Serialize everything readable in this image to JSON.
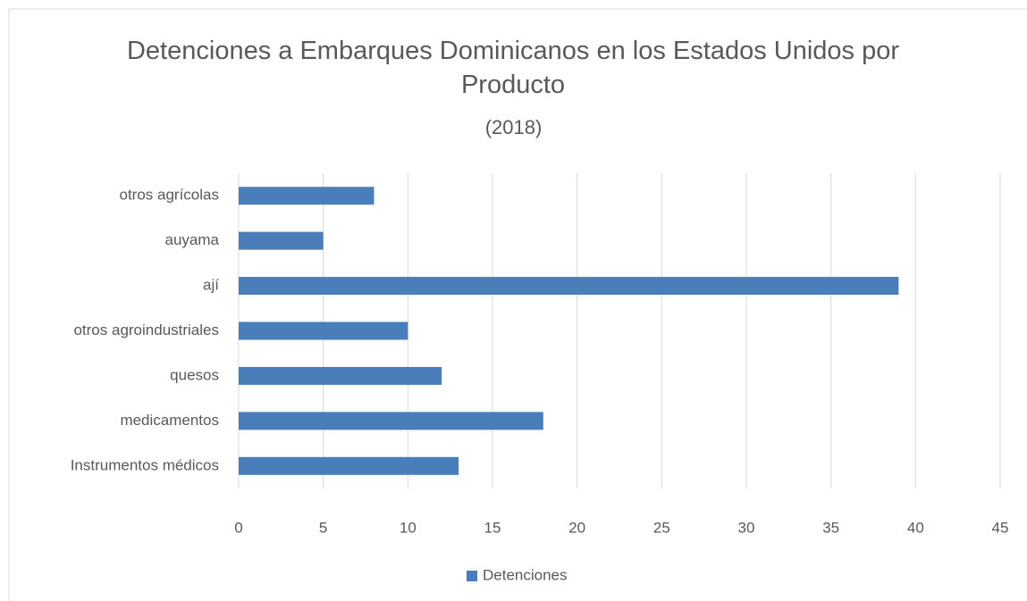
{
  "chart_data": {
    "type": "bar",
    "orientation": "horizontal",
    "title": "Detenciones a Embarques Dominicanos en los Estados Unidos por Producto",
    "subtitle": "(2018)",
    "categories": [
      "otros agrícolas",
      "auyama",
      "ají",
      "otros agroindustriales",
      "quesos",
      "medicamentos",
      "Instrumentos médicos"
    ],
    "series": [
      {
        "name": "Detenciones",
        "color": "#4a7ebb",
        "values": [
          8,
          5,
          39,
          10,
          12,
          18,
          13
        ]
      }
    ],
    "xlim": [
      0,
      45
    ],
    "xticks": [
      0,
      5,
      10,
      15,
      20,
      25,
      30,
      35,
      40,
      45
    ],
    "grid": true,
    "legend": "bottom"
  }
}
